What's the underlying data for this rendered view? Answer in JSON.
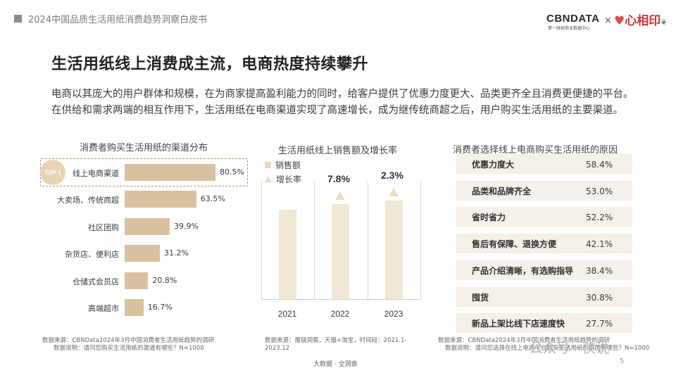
{
  "header": {
    "report_title": "2024中国品质生活用纸消费趋势洞察白皮书",
    "brand_logo": "CBNDATA",
    "brand_subtitle": "第一财经商业数据中心",
    "times_sign": "×",
    "partner_logo": "心相印"
  },
  "headline": "生活用纸线上消费成主流，电商热度持续攀升",
  "intro": "电商以其庞大的用户群体和规模，在为商家提高盈利能力的同时，给客户提供了优惠力度更大、品类更齐全且消费更便捷的平台。在供给和需求两端的相互作用下，生活用纸在电商渠道实现了高速增长，成为继传统商超之后，用户购买生活用纸的主要渠道。",
  "chart_data": [
    {
      "type": "bar",
      "orientation": "horizontal",
      "title": "消费者购买生活用纸的渠道分布",
      "categories": [
        "线上电商渠道",
        "大卖场、传统商超",
        "社区团购",
        "杂货店、便利店",
        "仓储式会员店",
        "高端超市"
      ],
      "values": [
        80.5,
        63.5,
        39.9,
        31.2,
        20.8,
        16.7
      ],
      "value_labels": [
        "80.5%",
        "63.5%",
        "39.9%",
        "31.2%",
        "20.8%",
        "16.7%"
      ],
      "badge": "TOP 1",
      "bar_color": "#d9c2a0",
      "source_note": "数据来源：CBNData2024年3月中国消费者生活用纸趋势的调研",
      "explain_note": "数据说明：请问您购买生活用纸的渠道有哪些？N=1000"
    },
    {
      "type": "bar",
      "title": "生活用纸线上销售额及增长率",
      "categories": [
        "2021",
        "2022",
        "2023"
      ],
      "series": [
        {
          "name": "销售额",
          "relative_values": [
            0.71,
            0.75,
            0.78
          ]
        },
        {
          "name": "增长率",
          "value_labels": [
            "",
            "7.8%",
            "2.3%"
          ],
          "values": [
            null,
            7.8,
            2.3
          ]
        }
      ],
      "grid": false,
      "legend_position": "top-left",
      "bar_color": "#f2e8d6",
      "source_note": "数据来源：魔镜洞察，天猫+淘宝，时间段：2021.1-2023.12"
    },
    {
      "type": "table",
      "title": "消费者选择线上电商购买生活用纸的原因",
      "rows": [
        {
          "label": "优惠力度大",
          "value": "58.4%"
        },
        {
          "label": "品类和品牌齐全",
          "value": "53.0%"
        },
        {
          "label": "省时省力",
          "value": "52.2%"
        },
        {
          "label": "售后有保障、退换方便",
          "value": "42.1%"
        },
        {
          "label": "产品介绍清晰，有选购指导",
          "value": "38.4%"
        },
        {
          "label": "囤货",
          "value": "30.8%"
        },
        {
          "label": "新品上架比线下店速度快",
          "value": "27.7%"
        }
      ],
      "source_note": "数据来源：CBNData2024年3月中国消费者生活用纸趋势的调研",
      "explain_note": "数据说明：请问您选择在线上电商平台购买生活用纸的原因有哪些？N=1000"
    }
  ],
  "footer": {
    "center": "大数据 · 全洞察",
    "page": "5",
    "watermark": "公众号 · 侠说"
  },
  "colors": {
    "bar_tan": "#d9c2a0",
    "column_cream": "#f2e8d6",
    "row_bg": "#f5f0e8",
    "badge": "#e8d4b4"
  }
}
